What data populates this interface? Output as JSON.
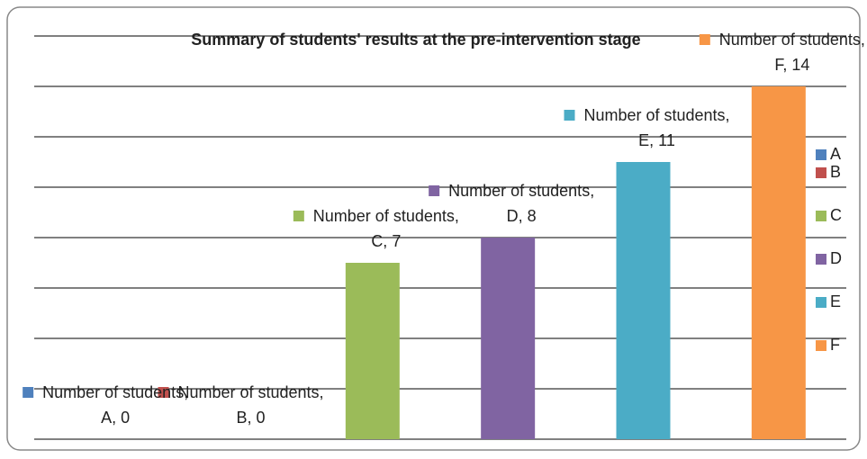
{
  "chart_data": {
    "type": "bar",
    "title": "Summary of students' results at the pre-intervention stage",
    "categories": [
      "A",
      "B",
      "C",
      "D",
      "E",
      "F"
    ],
    "values": [
      0,
      0,
      7,
      8,
      11,
      14
    ],
    "value_labels": [
      "Number of students, A, 0",
      "Number of students, B, 0",
      "Number of students, C, 7",
      "Number of students, D, 8",
      "Number of students, E, 11",
      "Number of students, F, 14"
    ],
    "colors": [
      "#4f81bd",
      "#c0504d",
      "#9bbb59",
      "#8064a2",
      "#4bacc6",
      "#f79646"
    ],
    "ylim": [
      0,
      16
    ],
    "yticks": [
      0,
      2,
      4,
      6,
      8,
      10,
      12,
      14,
      16
    ],
    "grid": true,
    "legend": "right"
  }
}
